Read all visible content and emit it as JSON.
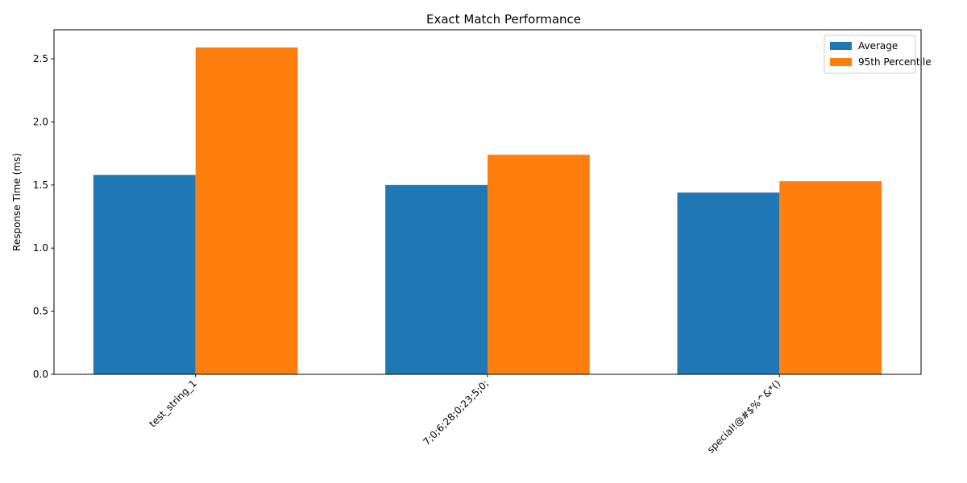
{
  "chart_data": {
    "type": "bar",
    "title": "Exact Match Performance",
    "xlabel": "",
    "ylabel": "Response Time (ms)",
    "categories": [
      "test_string_1",
      "7;0;6;28;0;23;5;0;",
      "special!@#$%^&*()"
    ],
    "series": [
      {
        "name": "Average",
        "color": "#1f77b4",
        "values": [
          1.58,
          1.5,
          1.44
        ]
      },
      {
        "name": "95th Percentile",
        "color": "#ff7f0e",
        "values": [
          2.59,
          1.74,
          1.53
        ]
      }
    ],
    "ylim": [
      0,
      2.73
    ],
    "yticks": [
      0.0,
      0.5,
      1.0,
      1.5,
      2.0,
      2.5
    ],
    "ytick_labels": [
      "0.0",
      "0.5",
      "1.0",
      "1.5",
      "2.0",
      "2.5"
    ],
    "grid": false,
    "legend_position": "top-right",
    "xtick_rotation": 45
  }
}
